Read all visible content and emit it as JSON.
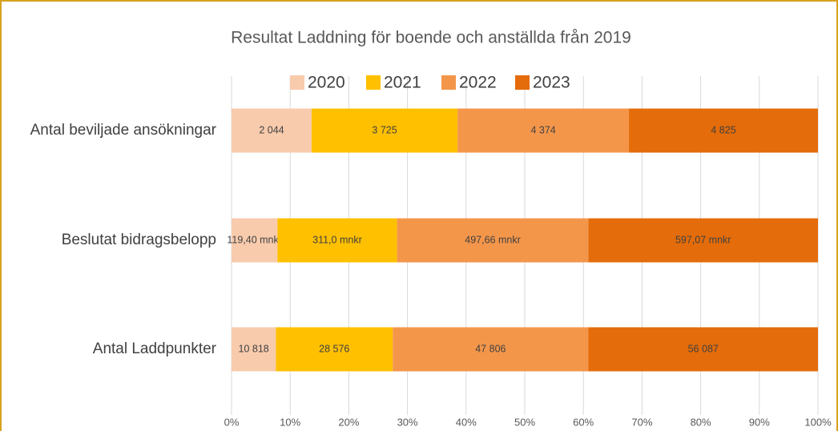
{
  "chart_data": {
    "type": "stacked-bar-percent",
    "title": "Resultat Laddning för boende och anställda från 2019",
    "categories": [
      "Antal beviljade ansökningar",
      "Beslutat bidragsbelopp",
      "Antal Laddpunkter"
    ],
    "series": [
      {
        "name": "2020",
        "color": "#f8cbad",
        "values": [
          2044,
          119.4,
          10818
        ],
        "value_labels": [
          "2 044",
          "119,40 mnkr",
          "10 818"
        ]
      },
      {
        "name": "2021",
        "color": "#ffc000",
        "values": [
          3725,
          311.0,
          28576
        ],
        "value_labels": [
          "3 725",
          "311,0 mnkr",
          "28 576"
        ]
      },
      {
        "name": "2022",
        "color": "#f4964a",
        "values": [
          4374,
          497.66,
          47806
        ],
        "value_labels": [
          "4 374",
          "497,66 mnkr",
          "47 806"
        ]
      },
      {
        "name": "2023",
        "color": "#e46c0a",
        "values": [
          4825,
          597.07,
          56087
        ],
        "value_labels": [
          "4 825",
          "597,07 mnkr",
          "56 087"
        ]
      }
    ],
    "xlim": [
      0,
      100
    ],
    "xticks": [
      {
        "value": 0,
        "label": "0%"
      },
      {
        "value": 10,
        "label": "10%"
      },
      {
        "value": 20,
        "label": "20%"
      },
      {
        "value": 30,
        "label": "30%"
      },
      {
        "value": 40,
        "label": "40%"
      },
      {
        "value": 50,
        "label": "50%"
      },
      {
        "value": 60,
        "label": "60%"
      },
      {
        "value": 70,
        "label": "70%"
      },
      {
        "value": 80,
        "label": "80%"
      },
      {
        "value": 90,
        "label": "90%"
      },
      {
        "value": 100,
        "label": "100%"
      }
    ],
    "grid": true,
    "legend": "top"
  }
}
